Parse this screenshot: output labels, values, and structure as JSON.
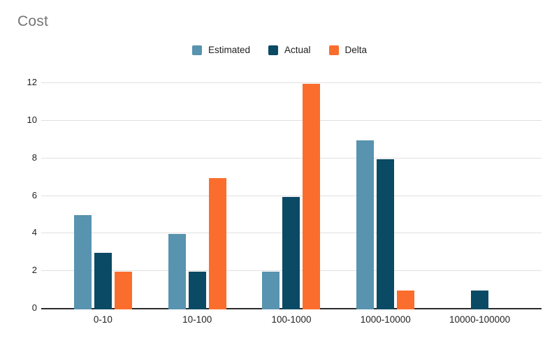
{
  "title": "Cost",
  "colors": {
    "background": "#ffffff",
    "title_text": "#757575",
    "gridline": "#e0e0e0",
    "axis_line": "#2b2b2b",
    "label_text": "#1f1f1f"
  },
  "chart_data": {
    "type": "bar",
    "title": "Cost",
    "categories": [
      "0-10",
      "10-100",
      "100-1000",
      "1000-10000",
      "10000-100000"
    ],
    "series": [
      {
        "name": "Estimated",
        "color": "#5893af",
        "values": [
          5,
          4,
          2,
          9,
          0
        ]
      },
      {
        "name": "Actual",
        "color": "#0a4a64",
        "values": [
          3,
          2,
          6,
          8,
          1
        ]
      },
      {
        "name": "Delta",
        "color": "#fb6d2c",
        "values": [
          2,
          7,
          12,
          1,
          0
        ]
      }
    ],
    "xlabel": "",
    "ylabel": "",
    "ylim": [
      0,
      12
    ],
    "yticks": [
      0,
      2,
      4,
      6,
      8,
      10,
      12
    ],
    "grid": true,
    "legend_position": "top-center"
  }
}
